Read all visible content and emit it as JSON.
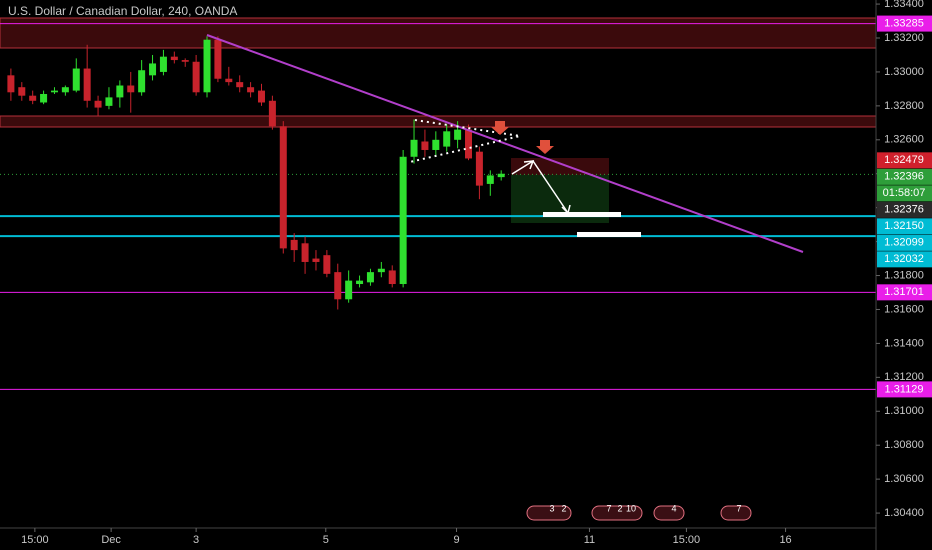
{
  "chart_data": {
    "type": "candlestick",
    "title": "U.S. Dollar / Canadian Dollar, 240, OANDA",
    "x": [
      1,
      2,
      3,
      4,
      5,
      6,
      7,
      8,
      9,
      10,
      11,
      12,
      13,
      14,
      15,
      16,
      17,
      18,
      19,
      20,
      21,
      22,
      23,
      24,
      25,
      26,
      27,
      28,
      29,
      30,
      31,
      32,
      33,
      34,
      35,
      36,
      37,
      38,
      39,
      40,
      41,
      42,
      43,
      44,
      45,
      46
    ],
    "open": [
      1.3298,
      1.3291,
      1.3286,
      1.3282,
      1.3288,
      1.3288,
      1.3289,
      1.3302,
      1.3283,
      1.328,
      1.3285,
      1.3292,
      1.3288,
      1.3298,
      1.33,
      1.3309,
      1.3307,
      1.3306,
      1.3288,
      1.3319,
      1.3296,
      1.3294,
      1.3291,
      1.3289,
      1.3283,
      1.3268,
      1.3201,
      1.3199,
      1.319,
      1.3192,
      1.3182,
      1.3166,
      1.3175,
      1.3176,
      1.3182,
      1.3183,
      1.3175,
      1.325,
      1.3259,
      1.3254,
      1.3256,
      1.326,
      1.3266,
      1.3253,
      1.3234,
      1.3238
    ],
    "high": [
      1.3302,
      1.3294,
      1.3289,
      1.3289,
      1.3291,
      1.3292,
      1.3308,
      1.3316,
      1.3286,
      1.3291,
      1.3295,
      1.33,
      1.3307,
      1.331,
      1.3313,
      1.3312,
      1.3308,
      1.331,
      1.3321,
      1.3321,
      1.3303,
      1.3298,
      1.3294,
      1.3293,
      1.3286,
      1.3271,
      1.3205,
      1.3203,
      1.3195,
      1.3195,
      1.3187,
      1.3183,
      1.318,
      1.3184,
      1.3188,
      1.3186,
      1.3254,
      1.3272,
      1.3266,
      1.3265,
      1.3269,
      1.3271,
      1.3269,
      1.3256,
      1.3242,
      1.3242
    ],
    "low": [
      1.3283,
      1.3283,
      1.3281,
      1.3281,
      1.3287,
      1.3286,
      1.3288,
      1.3279,
      1.3274,
      1.3278,
      1.3279,
      1.3276,
      1.3286,
      1.3295,
      1.3298,
      1.3305,
      1.3303,
      1.3286,
      1.3285,
      1.3294,
      1.3292,
      1.3288,
      1.3285,
      1.328,
      1.3266,
      1.3193,
      1.3188,
      1.3181,
      1.3183,
      1.3179,
      1.316,
      1.3164,
      1.3173,
      1.3174,
      1.3179,
      1.3173,
      1.3173,
      1.3246,
      1.325,
      1.325,
      1.3253,
      1.3255,
      1.3248,
      1.3225,
      1.3227,
      1.3236
    ],
    "close": [
      1.3288,
      1.3286,
      1.3283,
      1.3287,
      1.3289,
      1.3291,
      1.3302,
      1.3283,
      1.3279,
      1.3285,
      1.3292,
      1.3288,
      1.3301,
      1.3305,
      1.3309,
      1.3307,
      1.3306,
      1.3288,
      1.3319,
      1.3296,
      1.3294,
      1.3291,
      1.3288,
      1.3282,
      1.3268,
      1.3196,
      1.3195,
      1.3188,
      1.3188,
      1.3181,
      1.3166,
      1.3177,
      1.3177,
      1.3182,
      1.3184,
      1.3175,
      1.325,
      1.326,
      1.3254,
      1.326,
      1.3265,
      1.3266,
      1.3249,
      1.3233,
      1.3239,
      1.324
    ],
    "up_color": "#2fe02f",
    "down_color": "#c8232c",
    "xlim": [
      0,
      80.4
    ],
    "xticks": [
      {
        "value": 3.2,
        "label": "15:00"
      },
      {
        "value": 10.2,
        "label": "Dec"
      },
      {
        "value": 18,
        "label": "3"
      },
      {
        "value": 29.9,
        "label": "5"
      },
      {
        "value": 41.9,
        "label": "9"
      },
      {
        "value": 54.1,
        "label": "11"
      },
      {
        "value": 63,
        "label": "15:00"
      },
      {
        "value": 72.1,
        "label": "16"
      }
    ],
    "ylim": [
      1.30312,
      1.33424
    ],
    "yticks": [
      {
        "value": 1.334,
        "label": "1.33400"
      },
      {
        "value": 1.332,
        "label": "1.33200"
      },
      {
        "value": 1.33,
        "label": "1.33000"
      },
      {
        "value": 1.328,
        "label": "1.32800"
      },
      {
        "value": 1.326,
        "label": "1.32600"
      },
      {
        "value": 1.324,
        "label": "1.32400"
      },
      {
        "value": 1.322,
        "label": "1.32200"
      },
      {
        "value": 1.32,
        "label": "1.32000"
      },
      {
        "value": 1.318,
        "label": "1.31800"
      },
      {
        "value": 1.316,
        "label": "1.31600"
      },
      {
        "value": 1.314,
        "label": "1.31400"
      },
      {
        "value": 1.312,
        "label": "1.31200"
      },
      {
        "value": 1.31,
        "label": "1.31000"
      },
      {
        "value": 1.308,
        "label": "1.30800"
      },
      {
        "value": 1.306,
        "label": "1.30600"
      },
      {
        "value": 1.304,
        "label": "1.30400"
      }
    ],
    "price_labels": [
      {
        "value": 1.33285,
        "label": "1.33285",
        "color": "#e91ee9",
        "line": "solid"
      },
      {
        "value": 1.32479,
        "label": "1.32479",
        "color": "#d0202c",
        "line": "none"
      },
      {
        "value": 1.32396,
        "label": "1.32396",
        "color": "#2e9e3a",
        "line": "dotted",
        "countdown": "01:58:07"
      },
      {
        "value": 1.32376,
        "label": "1.32376",
        "color": "#2a2a2a",
        "line": "none"
      },
      {
        "value": 1.3215,
        "label": "1.32150",
        "color": "#00bcd4",
        "line": "solid"
      },
      {
        "value": 1.32099,
        "label": "1.32099",
        "color": "#00bcd4",
        "line": "none"
      },
      {
        "value": 1.32032,
        "label": "1.32032",
        "color": "#00bcd4",
        "line": "solid"
      },
      {
        "value": 1.31701,
        "label": "1.31701",
        "color": "#e91ee9",
        "line": "solid"
      },
      {
        "value": 1.31129,
        "label": "1.31129",
        "color": "#e91ee9",
        "line": "solid"
      }
    ],
    "events": [
      [
        "3",
        "2"
      ],
      [
        "7",
        "2",
        "10"
      ],
      [
        "4"
      ],
      [
        "7"
      ]
    ]
  }
}
